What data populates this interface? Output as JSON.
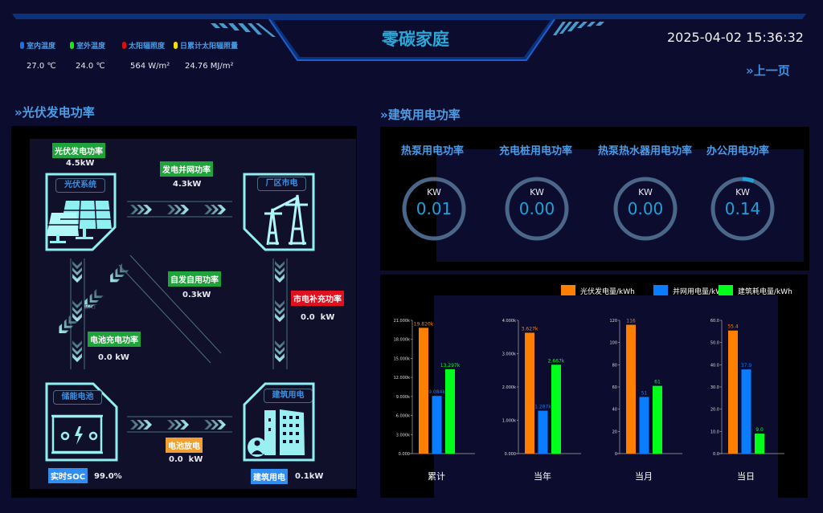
{
  "header": {
    "title": "零碳家庭",
    "datetime": "2025-04-02 15:36:32",
    "back_label": "»上一页"
  },
  "env": [
    {
      "label": "室内温度",
      "value": "27.0 ℃",
      "color": "#1e6fe0"
    },
    {
      "label": "室外温度",
      "value": "24.0 ℃",
      "color": "#19e619"
    },
    {
      "label": "太阳辐照度",
      "value": "564 W/m²",
      "color": "#d81010"
    },
    {
      "label": "日累计太阳辐照量",
      "value": "24.76 MJ/m²",
      "color": "#f0e010"
    }
  ],
  "pv": {
    "section_title": "»光伏发电功率",
    "nodes": {
      "pv": "光伏系统",
      "grid": "厂区市电",
      "battery": "储能电池",
      "building": "建筑用电"
    },
    "bat_text": "BAT",
    "flows": {
      "pv_power": {
        "label": "光伏发电功率",
        "value": "4.5kW",
        "color": "#1fa33a"
      },
      "grid_export": {
        "label": "发电并网功率",
        "value": "4.3kW",
        "color": "#1fa33a"
      },
      "self_use": {
        "label": "自发自用功率",
        "value": "0.3kW",
        "color": "#1fa33a"
      },
      "grid_supply": {
        "label": "市电补充功率",
        "value": "0.0  kW",
        "color": "#e0101e"
      },
      "battery_charge": {
        "label": "电池充电功率",
        "value": "0.0 kW",
        "color": "#1fa33a"
      },
      "battery_discharge": {
        "label": "电池放电",
        "value": "0.0  kW",
        "color": "#f0a030"
      },
      "soc": {
        "label": "实时SOC",
        "value": "99.0%",
        "color": "#2f8ef0"
      },
      "building_load": {
        "label": "建筑用电",
        "value": "0.1kW",
        "color": "#2f8ef0"
      }
    }
  },
  "building": {
    "section_title": "»建筑用电功率",
    "gauges": [
      {
        "title": "热泵用电功率",
        "unit": "KW",
        "value": "0.01",
        "fill_fraction": 0.003,
        "arc_color": "#c0501a"
      },
      {
        "title": "充电桩用电功率",
        "unit": "KW",
        "value": "0.00",
        "fill_fraction": 0
      },
      {
        "title": "热泵热水器用电功率",
        "unit": "KW",
        "value": "0.00",
        "fill_fraction": 0
      },
      {
        "title": "办公用电功率",
        "unit": "KW",
        "value": "0.14",
        "fill_fraction": 0.06,
        "arc_color": "#1fa0d8"
      }
    ]
  },
  "chart_data": {
    "type": "bar",
    "legend_position": "top-right",
    "series": [
      {
        "name": "光伏发电量/kWh",
        "color": "#ff8000"
      },
      {
        "name": "并网用电量/kWh",
        "color": "#0a7cff"
      },
      {
        "name": "建筑耗电量/kWh",
        "color": "#00ff1a"
      }
    ],
    "panels": [
      {
        "category": "累计",
        "ylim": [
          0,
          21000
        ],
        "ticks": [
          "0.000",
          "3.000k",
          "6.000k",
          "9.000k",
          "12.000k",
          "15.000k",
          "18.000k",
          "21.000k"
        ],
        "values": [
          19820,
          9084,
          13297
        ],
        "labels": [
          "19.820k",
          "9.084k",
          "13.297k"
        ]
      },
      {
        "category": "当年",
        "ylim": [
          0,
          4000
        ],
        "ticks": [
          "0.000",
          "1.000k",
          "2.000k",
          "3.000k",
          "4.000k"
        ],
        "values": [
          3627,
          1287,
          2667
        ],
        "labels": [
          "3.627k",
          "1.287k",
          "2.667k"
        ]
      },
      {
        "category": "当月",
        "ylim": [
          0,
          120
        ],
        "ticks": [
          "0",
          "20",
          "40",
          "60",
          "80",
          "100",
          "120"
        ],
        "values": [
          116,
          51,
          61
        ],
        "labels": [
          "116",
          "51",
          "61"
        ]
      },
      {
        "category": "当日",
        "ylim": [
          0,
          60
        ],
        "ticks": [
          "0.0",
          "10.0",
          "20.0",
          "30.0",
          "40.0",
          "50.0",
          "60.0"
        ],
        "values": [
          55.4,
          37.9,
          9.0
        ],
        "labels": [
          "55.4",
          "37.9",
          "9.0"
        ]
      }
    ]
  }
}
